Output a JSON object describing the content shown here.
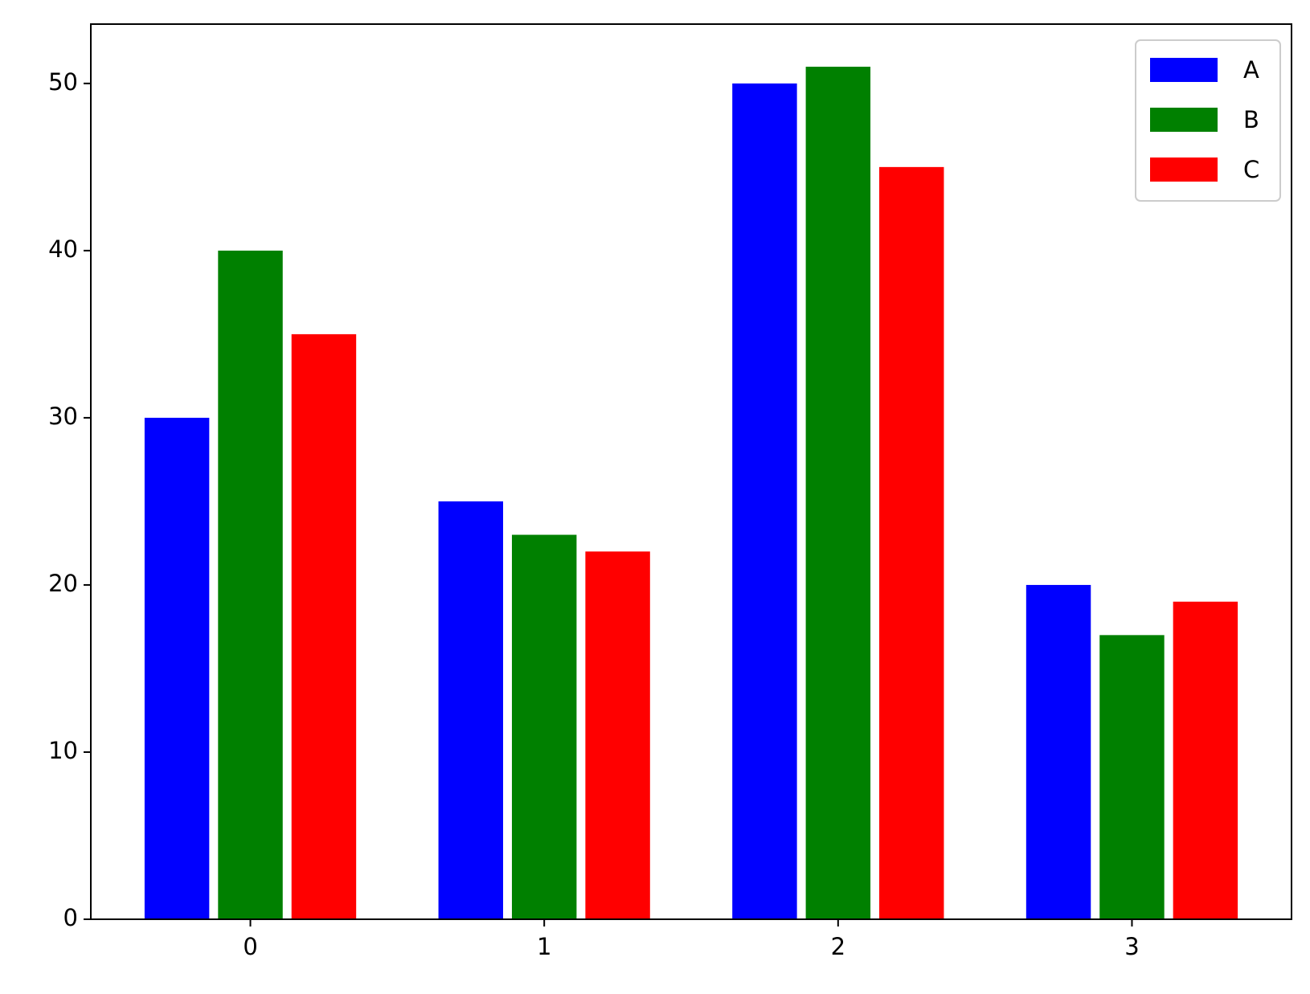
{
  "chart_data": {
    "type": "bar",
    "categories": [
      "0",
      "1",
      "2",
      "3"
    ],
    "series": [
      {
        "name": "A",
        "color": "#0000ff",
        "values": [
          30,
          25,
          50,
          20
        ]
      },
      {
        "name": "B",
        "color": "#008000",
        "values": [
          40,
          23,
          51,
          17
        ]
      },
      {
        "name": "C",
        "color": "#ff0000",
        "values": [
          35,
          22,
          45,
          19
        ]
      }
    ],
    "ylim": [
      0,
      53.55
    ],
    "yticks": [
      0,
      10,
      20,
      30,
      40,
      50
    ],
    "grid": false,
    "legend": "upper right"
  }
}
